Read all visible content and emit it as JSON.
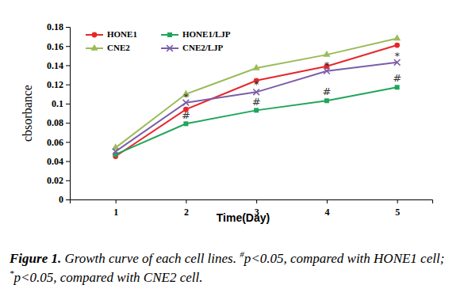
{
  "chart_data": {
    "type": "line",
    "x_label": "Time(Day)",
    "y_label": "cbsorbance",
    "caption": {
      "label": "Figure 1.",
      "text": "Growth curve of each cell lines. #p<0.05, compared with HONE1 cell; *p<0.05, compared with CNE2 cell."
    },
    "x": [
      1,
      2,
      3,
      4,
      5
    ],
    "xlim": [
      0.35,
      5.5
    ],
    "xticks": [
      1,
      2,
      3,
      4,
      5
    ],
    "ylim": [
      0,
      0.18
    ],
    "yticks": [
      0,
      0.02,
      0.04,
      0.06,
      0.08,
      0.1,
      0.12,
      0.14,
      0.16,
      0.18
    ],
    "legend": "top-left",
    "series": [
      {
        "name": "HONE1",
        "color": "#e8262a",
        "marker": "circle",
        "values": [
          0.045,
          0.094,
          0.124,
          0.139,
          0.161
        ]
      },
      {
        "name": "HONE1/LJP",
        "color": "#1fa65a",
        "marker": "square",
        "values": [
          0.047,
          0.079,
          0.093,
          0.103,
          0.117
        ]
      },
      {
        "name": "CNE2",
        "color": "#9bbb59",
        "marker": "triangle",
        "values": [
          0.054,
          0.11,
          0.137,
          0.151,
          0.168
        ]
      },
      {
        "name": "CNE2/LJP",
        "color": "#7b5ea7",
        "marker": "x",
        "values": [
          0.05,
          0.101,
          0.112,
          0.134,
          0.143
        ]
      }
    ],
    "annotations": [
      {
        "text": "#",
        "x": 2,
        "y": 0.087
      },
      {
        "text": "#",
        "x": 3,
        "y": 0.101
      },
      {
        "text": "#",
        "x": 4,
        "y": 0.112
      },
      {
        "text": "#",
        "x": 5,
        "y": 0.126
      },
      {
        "text": "*",
        "x": 2,
        "y": 0.106
      },
      {
        "text": "*",
        "x": 3,
        "y": 0.119
      },
      {
        "text": "*",
        "x": 4,
        "y": 0.139
      },
      {
        "text": "*",
        "x": 5,
        "y": 0.149
      }
    ]
  }
}
